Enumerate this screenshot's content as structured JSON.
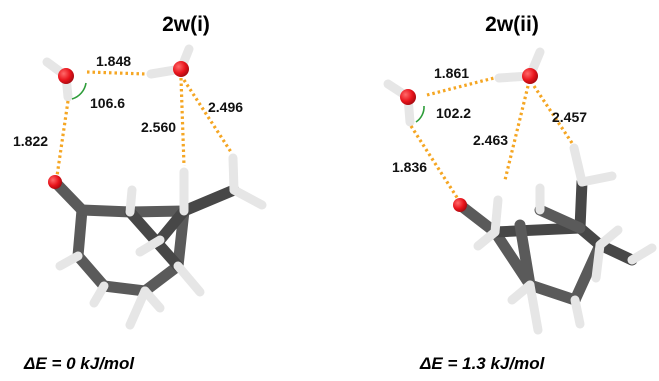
{
  "panels": [
    {
      "title": "2w(i)",
      "distances": [
        "1.848",
        "1.822",
        "2.560",
        "2.496"
      ],
      "angle": "106.6",
      "energy": "ΔE = 0 kJ/mol"
    },
    {
      "title": "2w(ii)",
      "distances": [
        "1.861",
        "1.836",
        "2.463",
        "2.457"
      ],
      "angle": "102.2",
      "energy": "ΔE = 1.3 kJ/mol"
    }
  ],
  "colors": {
    "oxygen": "#E8131B",
    "hydrogen": "#F2F2F2",
    "carbon": "#5A5A5A",
    "h_bond": "#F5A623",
    "angle_arc": "#2E9D3A"
  }
}
